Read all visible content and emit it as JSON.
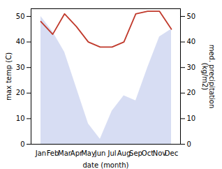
{
  "chart_data": {
    "type": "line",
    "categories": [
      "Jan",
      "Feb",
      "Mar",
      "Apr",
      "May",
      "Jun",
      "Jul",
      "Aug",
      "Sep",
      "Oct",
      "Nov",
      "Dec"
    ],
    "xlabel": "date (month)",
    "ylabel": "max temp (C)",
    "y2label": "med. precipitation\n(kg/m2)",
    "ylim": [
      0,
      53
    ],
    "yticks": [
      0,
      10,
      20,
      30,
      40,
      50
    ],
    "y2lim": [
      0,
      53
    ],
    "y2ticks": [
      0,
      10,
      20,
      30,
      40,
      50
    ],
    "series": [
      {
        "type": "area",
        "axis": "y2",
        "color": "#b0bce8",
        "values": [
          50,
          44,
          36,
          22,
          8,
          2,
          13,
          19,
          17,
          30,
          42,
          45
        ]
      },
      {
        "type": "line",
        "color": "#c0392b",
        "values": [
          48,
          43,
          51,
          46,
          40,
          38,
          38,
          40,
          51,
          52,
          52,
          45
        ]
      }
    ]
  }
}
